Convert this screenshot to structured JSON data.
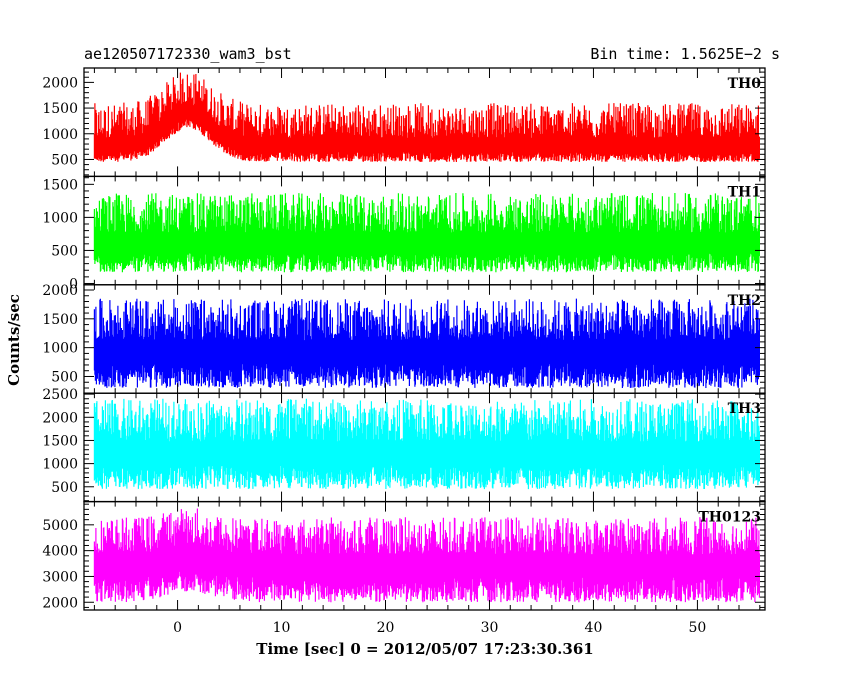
{
  "header": {
    "left_title": "ae120507172330_wam3_bst",
    "right_title": "Bin time: 1.5625E−2 s"
  },
  "axes": {
    "xlabel": "Time [sec] 0 = 2012/05/07 17:23:30.361",
    "ylabel": "Counts/sec"
  },
  "chart_data": [
    {
      "type": "line",
      "name": "TH0",
      "color": "#ff0000",
      "xlim": [
        -9,
        56.5
      ],
      "ylim": [
        170,
        2280
      ],
      "yticks": [
        500,
        1000,
        1500,
        2000
      ],
      "x_start": -8,
      "x_end": 56,
      "baseline": 750,
      "noise_low": 300,
      "noise_high": 850,
      "burst": {
        "center": 1,
        "width": 3,
        "amplitude": 650
      },
      "y_tick_labels": [
        "500",
        "1000",
        "1500",
        "2000"
      ]
    },
    {
      "type": "line",
      "name": "TH1",
      "color": "#00ff00",
      "xlim": [
        -9,
        56.5
      ],
      "ylim": [
        -20,
        1620
      ],
      "yticks": [
        0,
        500,
        1000,
        1500
      ],
      "x_start": -8,
      "x_end": 56,
      "baseline": 620,
      "noise_low": 450,
      "noise_high": 750,
      "y_tick_labels": [
        "0",
        "500",
        "1000",
        "1500"
      ]
    },
    {
      "type": "line",
      "name": "TH2",
      "color": "#0000ff",
      "xlim": [
        -9,
        56.5
      ],
      "ylim": [
        210,
        2090
      ],
      "yticks": [
        500,
        1000,
        1500,
        2000
      ],
      "x_start": -8,
      "x_end": 56,
      "baseline": 950,
      "noise_low": 650,
      "noise_high": 900,
      "y_tick_labels": [
        "500",
        "1000",
        "1500",
        "2000"
      ]
    },
    {
      "type": "line",
      "name": "TH3",
      "color": "#00ffff",
      "xlim": [
        -9,
        56.5
      ],
      "ylim": [
        180,
        2520
      ],
      "yticks": [
        500,
        1000,
        1500,
        2000,
        2500
      ],
      "x_start": -8,
      "x_end": 56,
      "baseline": 1250,
      "noise_low": 800,
      "noise_high": 1150,
      "y_tick_labels": [
        "500",
        "1000",
        "1500",
        "2000",
        "2500"
      ]
    },
    {
      "type": "line",
      "name": "TH0123",
      "color": "#ff00ff",
      "xlim": [
        -9,
        56.5
      ],
      "ylim": [
        1700,
        5900
      ],
      "yticks": [
        2000,
        3000,
        4000,
        5000
      ],
      "x_start": -8,
      "x_end": 56,
      "baseline": 3500,
      "noise_low": 1500,
      "noise_high": 1800,
      "burst": {
        "center": 1,
        "width": 3,
        "amplitude": 400
      },
      "y_tick_labels": [
        "2000",
        "3000",
        "4000",
        "5000"
      ]
    }
  ],
  "x_axis": {
    "ticks": [
      0,
      10,
      20,
      30,
      40,
      50
    ],
    "tick_labels": [
      "0",
      "10",
      "20",
      "30",
      "40",
      "50"
    ],
    "minor_step": 2
  }
}
